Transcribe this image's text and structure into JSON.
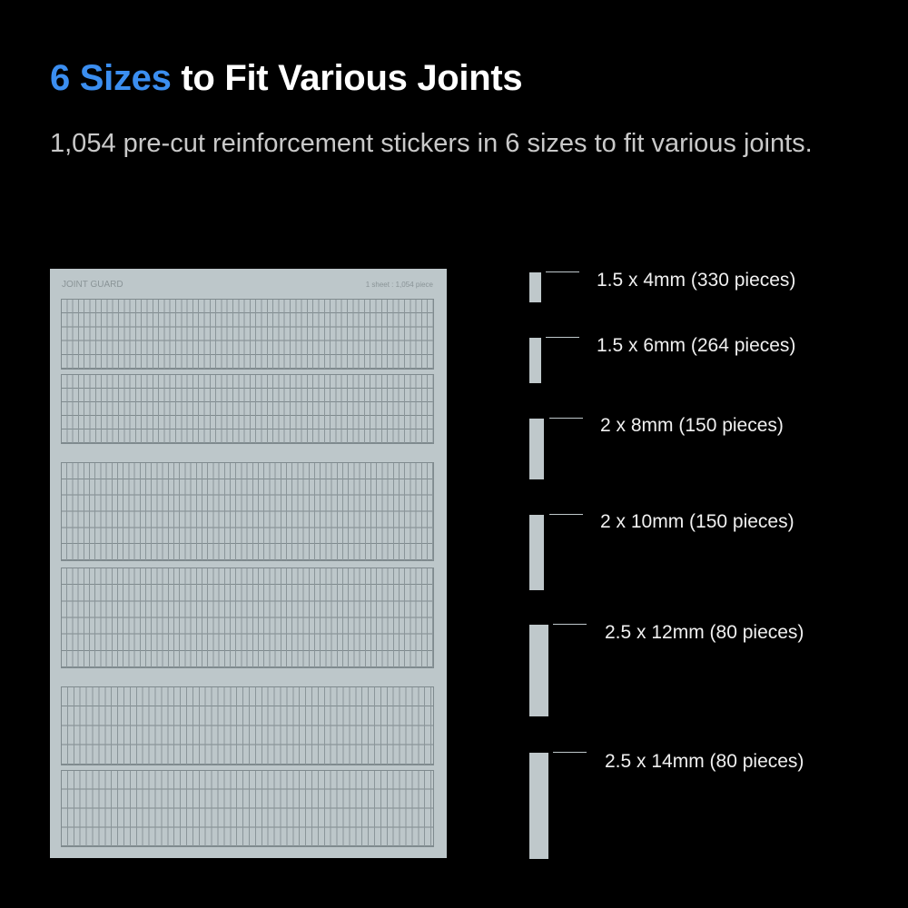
{
  "header": {
    "title_accent": "6 Sizes",
    "title_rest": " to Fit Various Joints",
    "subtitle": "1,054 pre-cut reinforcement stickers in 6 sizes to fit various joints."
  },
  "sheet": {
    "brand": "JOINT GUARD",
    "count": "1 sheet : 1,054 piece"
  },
  "sizes": [
    {
      "label": "1.5 x 4mm (330 pieces)"
    },
    {
      "label": "1.5 x 6mm (264 pieces)"
    },
    {
      "label": "2 x 8mm (150 pieces)"
    },
    {
      "label": "2 x 10mm (150 pieces)"
    },
    {
      "label": "2.5 x 12mm (80 pieces)"
    },
    {
      "label": "2.5 x 14mm (80 pieces)"
    }
  ],
  "colors": {
    "accent": "#3b8ef0",
    "sheet": "#bdc7ca",
    "background": "#000000"
  }
}
